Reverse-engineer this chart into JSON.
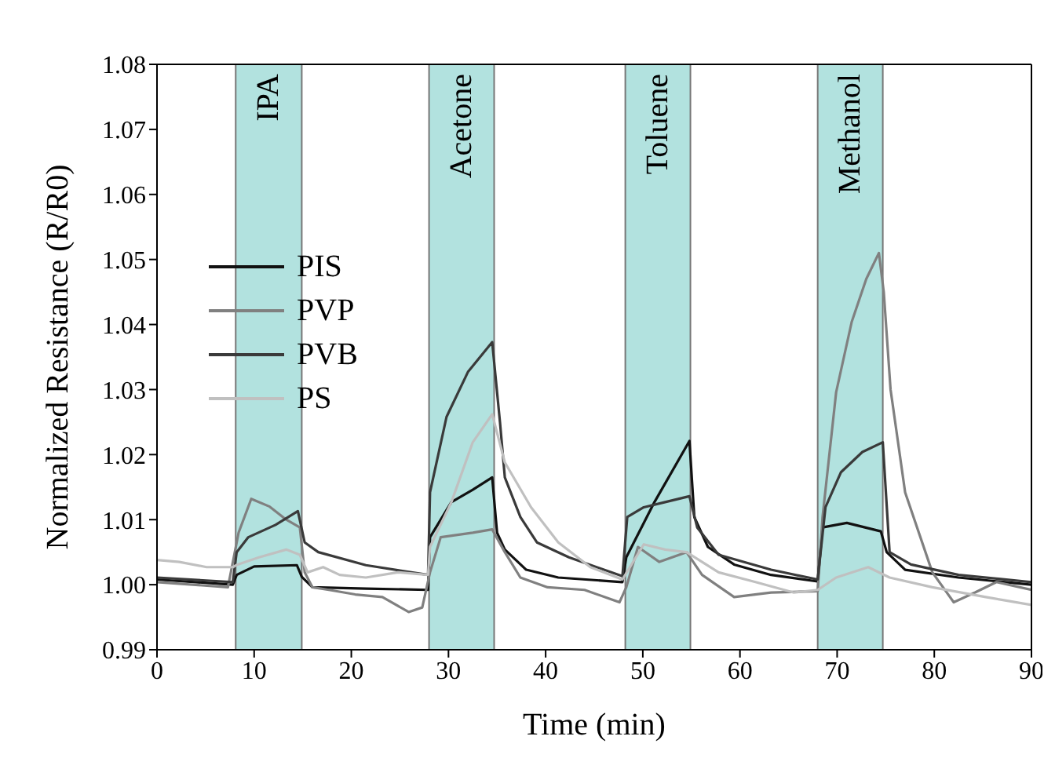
{
  "chart_data": {
    "type": "line",
    "xlabel": "Time (min)",
    "ylabel": "Normalized Resistance (R/R0)",
    "xlim": [
      0,
      90
    ],
    "xticks": [
      0,
      10,
      20,
      30,
      40,
      50,
      60,
      70,
      80,
      90
    ],
    "ylim": [
      0.99,
      1.08
    ],
    "yticks": [
      0.99,
      {
        "value": 1,
        "label": "1.00"
      },
      1.01,
      1.02,
      1.03,
      1.04,
      1.05,
      1.06,
      1.07,
      1.08
    ],
    "legend": "top left",
    "marker": "none",
    "line_style": "solid",
    "bands": [
      {
        "axis": "x",
        "from": 8.1,
        "to": 14.9,
        "label": "IPA",
        "color": "#b2e2df"
      },
      {
        "axis": "x",
        "from": 28,
        "to": 34.7,
        "label": "Acetone",
        "color": "#b2e2df"
      },
      {
        "axis": "x",
        "from": 48.2,
        "to": 54.9,
        "label": "Toluene",
        "color": "#b2e2df"
      },
      {
        "axis": "x",
        "from": 68,
        "to": 74.7,
        "label": "Methanol",
        "color": "#b2e2df"
      }
    ],
    "series": [
      {
        "name": "PIS",
        "color": "#111111",
        "x": [
          0,
          7.8,
          8.2,
          10,
          14.4,
          14.9,
          16,
          21.5,
          27.9,
          28.1,
          30.3,
          32.5,
          34.5,
          35,
          35.8,
          38,
          41.3,
          47.9,
          48.3,
          51.2,
          54.8,
          55.3,
          56.7,
          59.4,
          63.2,
          68,
          68.5,
          71,
          74.5,
          75.1,
          77,
          82.5,
          90
        ],
        "values": [
          1.0008,
          1.0,
          1.0015,
          1.0028,
          1.003,
          1.0012,
          0.9996,
          0.9994,
          0.9992,
          1.0073,
          1.0127,
          1.0146,
          1.0165,
          1.008,
          1.0054,
          1.0023,
          1.0011,
          1.0004,
          1.0042,
          1.0127,
          1.0221,
          1.0104,
          1.0058,
          1.0031,
          1.0015,
          1.0005,
          1.0088,
          1.0095,
          1.0082,
          1.005,
          1.0023,
          1.0011,
          1.0
        ]
      },
      {
        "name": "PVP",
        "color": "#808080",
        "x": [
          0,
          7.3,
          8.4,
          9.7,
          11.6,
          13.3,
          14.7,
          15.2,
          16,
          17.7,
          20.4,
          23.2,
          25.9,
          27.3,
          28.1,
          29.2,
          32.5,
          34.5,
          35.8,
          37.4,
          40.2,
          44,
          47.6,
          48.3,
          49.5,
          51.7,
          54.5,
          56.1,
          59.4,
          63.2,
          68,
          68.5,
          69.9,
          71.5,
          73,
          74.3,
          74.8,
          75.5,
          77,
          79.8,
          82,
          84.2,
          86.4,
          90
        ],
        "values": [
          1.0004,
          0.9996,
          1.008,
          1.0132,
          1.012,
          1.01,
          1.0088,
          1.0019,
          0.9996,
          0.9992,
          0.9985,
          0.9981,
          0.9958,
          0.9965,
          1.0019,
          1.0073,
          1.008,
          1.0085,
          1.005,
          1.0011,
          0.9996,
          0.9992,
          0.9973,
          0.9996,
          1.0058,
          1.0035,
          1.005,
          1.0015,
          0.9981,
          0.9988,
          0.999,
          1.0104,
          1.0296,
          1.0404,
          1.047,
          1.051,
          1.045,
          1.03,
          1.0142,
          1.0019,
          0.9973,
          0.9988,
          1.0004,
          0.9992
        ]
      },
      {
        "name": "PVB",
        "color": "#3a3a3a",
        "x": [
          0,
          7.8,
          8.2,
          9.4,
          12.2,
          14.5,
          15.2,
          16.6,
          21.5,
          27.9,
          28.1,
          29.8,
          32,
          34.5,
          35.3,
          35.8,
          37.4,
          39.1,
          42.4,
          47.9,
          48.4,
          50.1,
          52.3,
          54.8,
          55.6,
          57.8,
          63.2,
          68,
          68.8,
          70.4,
          72.6,
          74.7,
          75.4,
          77.6,
          82.5,
          90
        ],
        "values": [
          1.0011,
          1.0004,
          1.005,
          1.0073,
          1.0092,
          1.0113,
          1.0065,
          1.005,
          1.003,
          1.0015,
          1.0142,
          1.0258,
          1.0327,
          1.0373,
          1.025,
          1.0165,
          1.0104,
          1.0065,
          1.0042,
          1.0013,
          1.0104,
          1.0119,
          1.0127,
          1.0136,
          1.0088,
          1.0046,
          1.0023,
          1.0008,
          1.0119,
          1.0173,
          1.0204,
          1.0219,
          1.005,
          1.0031,
          1.0015,
          1.0004
        ]
      },
      {
        "name": "PS",
        "color": "#c0c0c0",
        "x": [
          0,
          2.3,
          5.1,
          7.8,
          8.3,
          10.5,
          13.3,
          14.7,
          15.5,
          17.1,
          18.8,
          21.5,
          24.8,
          27.9,
          28.1,
          30.3,
          32.5,
          34.5,
          35.8,
          38.5,
          41.3,
          44.6,
          47.9,
          50.1,
          52.3,
          54.5,
          57.8,
          61.6,
          65.5,
          68,
          69.9,
          73.2,
          75.4,
          79.8,
          85.3,
          90
        ],
        "values": [
          1.0038,
          1.0035,
          1.0027,
          1.0027,
          1.0031,
          1.0042,
          1.0054,
          1.0046,
          1.0019,
          1.0027,
          1.0015,
          1.0011,
          1.0019,
          1.0015,
          1.0058,
          1.0127,
          1.0219,
          1.0262,
          1.0188,
          1.0119,
          1.0065,
          1.0027,
          1.0008,
          1.0062,
          1.0054,
          1.005,
          1.0019,
          1.0004,
          0.9988,
          0.9992,
          1.0011,
          1.0027,
          1.0011,
          0.9996,
          0.9981,
          0.9969
        ]
      }
    ]
  }
}
